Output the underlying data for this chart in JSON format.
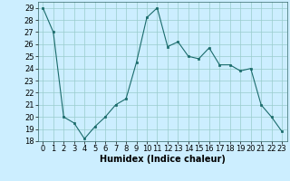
{
  "x": [
    0,
    1,
    2,
    3,
    4,
    5,
    6,
    7,
    8,
    9,
    10,
    11,
    12,
    13,
    14,
    15,
    16,
    17,
    18,
    19,
    20,
    21,
    22,
    23
  ],
  "y": [
    29,
    27,
    20,
    19.5,
    18.2,
    19.2,
    20,
    21,
    21.5,
    24.5,
    28.2,
    29,
    25.8,
    26.2,
    25,
    24.8,
    25.7,
    24.3,
    24.3,
    23.8,
    24,
    21,
    20,
    18.8
  ],
  "xlabel": "Humidex (Indice chaleur)",
  "xlim": [
    -0.5,
    23.5
  ],
  "ylim": [
    18,
    29.5
  ],
  "yticks": [
    18,
    19,
    20,
    21,
    22,
    23,
    24,
    25,
    26,
    27,
    28,
    29
  ],
  "xticks": [
    0,
    1,
    2,
    3,
    4,
    5,
    6,
    7,
    8,
    9,
    10,
    11,
    12,
    13,
    14,
    15,
    16,
    17,
    18,
    19,
    20,
    21,
    22,
    23
  ],
  "line_color": "#1a6b6b",
  "marker_color": "#1a6b6b",
  "bg_color": "#cceeff",
  "grid_color": "#99cccc",
  "label_fontsize": 7,
  "tick_fontsize": 6
}
